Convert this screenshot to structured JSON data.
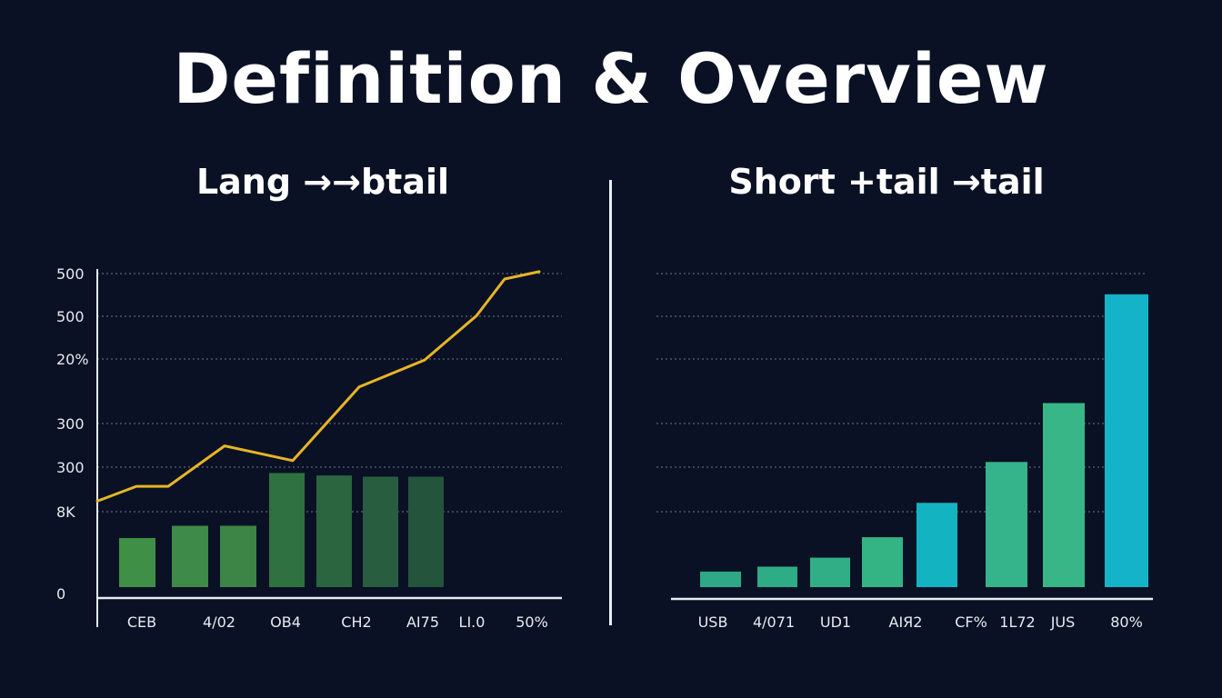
{
  "page_title": "Definition & Overview",
  "chart_data": [
    {
      "type": "line",
      "title": "Lang →→btail",
      "x_tick_labels": [
        "CEB",
        "4/02",
        "OB4",
        "CH2",
        "AI75",
        "LI.0",
        "50%"
      ],
      "y_tick_labels": [
        "500",
        "500",
        "20%",
        "300",
        "300",
        "8K",
        "0"
      ],
      "grid": true,
      "line_values": [
        0.395,
        0.455,
        0.455,
        0.62,
        0.56,
        0.86,
        0.97,
        1.15,
        1.3,
        1.33
      ],
      "bar_values": [
        0.2,
        0.25,
        0.25,
        0.465,
        0.455,
        0.45,
        0.45
      ],
      "bar_colors": [
        "#3f8f46",
        "#3e8a48",
        "#3c8547",
        "#2f7141",
        "#2b6540",
        "#285d3f",
        "#24543c"
      ],
      "line_color": "#e8b526"
    },
    {
      "type": "bar",
      "title": "Short +tail →tail",
      "x_tick_labels": [
        "USB",
        "4/071",
        "UD1",
        "AIЯ2",
        "CF%",
        "1L72",
        "JUS",
        "80%"
      ],
      "grid": true,
      "values": [
        0.095,
        0.125,
        0.18,
        0.305,
        0.515,
        0.765,
        1.125,
        1.79
      ],
      "bar_colors": [
        "#2ea887",
        "#2eac85",
        "#31ae85",
        "#34b384",
        "#14b3c1",
        "#35b38a",
        "#38b687",
        "#14b3c8"
      ]
    }
  ]
}
